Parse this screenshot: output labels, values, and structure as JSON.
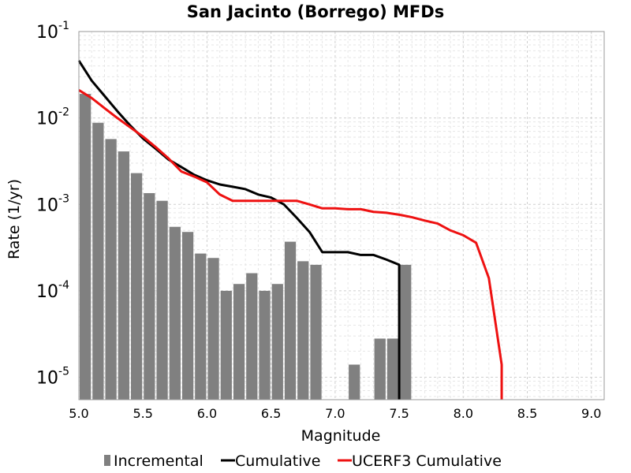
{
  "chart_data": {
    "type": "bar",
    "title": "San Jacinto (Borrego) MFDs",
    "xlabel": "Magnitude",
    "ylabel": "Rate (1/yr)",
    "xlim": [
      5.0,
      9.1
    ],
    "ylim": [
      5.5e-06,
      0.1
    ],
    "yscale": "log",
    "grid": true,
    "legend_position": "bottom",
    "x_ticks": [
      "5.0",
      "5.5",
      "6.0",
      "6.5",
      "7.0",
      "7.5",
      "8.0",
      "8.5",
      "9.0"
    ],
    "y_ticks": [
      {
        "base": "10",
        "exp": "-1",
        "value": 0.1
      },
      {
        "base": "10",
        "exp": "-2",
        "value": 0.01
      },
      {
        "base": "10",
        "exp": "-3",
        "value": 0.001
      },
      {
        "base": "10",
        "exp": "-4",
        "value": 0.0001
      },
      {
        "base": "10",
        "exp": "-5",
        "value": 1e-05
      }
    ],
    "series": [
      {
        "name": "Incremental",
        "kind": "bar",
        "color": "#808080",
        "x": [
          5.05,
          5.15,
          5.25,
          5.35,
          5.45,
          5.55,
          5.65,
          5.75,
          5.85,
          5.95,
          6.05,
          6.15,
          6.25,
          6.35,
          6.45,
          6.55,
          6.65,
          6.75,
          6.85,
          7.15,
          7.35,
          7.45,
          7.55
        ],
        "y": [
          0.019,
          0.0088,
          0.0057,
          0.0041,
          0.0023,
          0.00135,
          0.0011,
          0.00055,
          0.00048,
          0.00027,
          0.00024,
          0.0001,
          0.00012,
          0.00016,
          0.0001,
          0.00012,
          0.00037,
          0.00022,
          0.0002,
          1.4e-05,
          2.8e-05,
          2.8e-05,
          0.0002
        ]
      },
      {
        "name": "Cumulative",
        "kind": "line",
        "color": "#000000",
        "x": [
          5.0,
          5.1,
          5.2,
          5.3,
          5.4,
          5.5,
          5.6,
          5.7,
          5.8,
          5.9,
          6.0,
          6.1,
          6.2,
          6.3,
          6.4,
          6.5,
          6.6,
          6.7,
          6.8,
          6.9,
          7.0,
          7.1,
          7.2,
          7.3,
          7.4,
          7.5,
          7.5
        ],
        "y": [
          0.046,
          0.027,
          0.018,
          0.012,
          0.0082,
          0.0058,
          0.0044,
          0.0033,
          0.0027,
          0.0022,
          0.0019,
          0.0017,
          0.0016,
          0.0015,
          0.0013,
          0.0012,
          0.001,
          0.0007,
          0.00048,
          0.00028,
          0.00028,
          0.00028,
          0.00026,
          0.00026,
          0.00023,
          0.0002,
          5.5e-06
        ]
      },
      {
        "name": "UCERF3 Cumulative",
        "kind": "line",
        "color": "#ee1111",
        "x": [
          5.0,
          5.1,
          5.2,
          5.3,
          5.4,
          5.5,
          5.6,
          5.7,
          5.8,
          5.9,
          6.0,
          6.1,
          6.2,
          6.3,
          6.4,
          6.5,
          6.6,
          6.7,
          6.8,
          6.9,
          7.0,
          7.1,
          7.2,
          7.3,
          7.4,
          7.5,
          7.6,
          7.7,
          7.8,
          7.9,
          8.0,
          8.1,
          8.2,
          8.3,
          8.3
        ],
        "y": [
          0.021,
          0.017,
          0.013,
          0.01,
          0.0078,
          0.0061,
          0.0046,
          0.0034,
          0.0024,
          0.0021,
          0.0018,
          0.0013,
          0.0011,
          0.0011,
          0.0011,
          0.0011,
          0.0011,
          0.0011,
          0.001,
          0.0009,
          0.0009,
          0.00088,
          0.00088,
          0.00082,
          0.0008,
          0.00076,
          0.00071,
          0.00065,
          0.0006,
          0.0005,
          0.00044,
          0.00036,
          0.00014,
          1.4e-05,
          5.5e-06
        ]
      }
    ]
  }
}
